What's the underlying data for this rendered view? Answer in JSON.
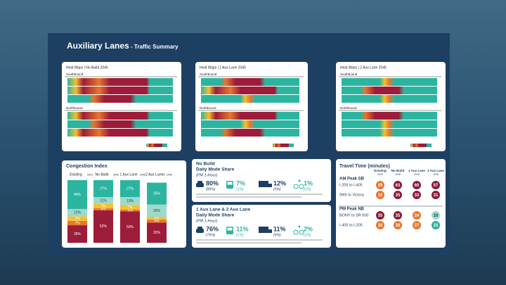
{
  "title": "Auxiliary Lanes",
  "subtitle": "- Traffic Summary",
  "heatmaps": [
    {
      "title": "Heat Maps | No Build 2045",
      "upper": "Southbound",
      "lower": "Northbound"
    },
    {
      "title": "Heat Maps | 1 Aux Lane 2045",
      "upper": "Southbound",
      "lower": "Northbound"
    },
    {
      "title": "Heat Maps | 2 Aux Lane 2045",
      "upper": "Southbound",
      "lower": "Northbound"
    }
  ],
  "congestion_index": {
    "type": "bar",
    "title": "Congestion Index",
    "categories": [
      {
        "label": "Existing",
        "year": "2019"
      },
      {
        "label": "No Build",
        "year": "2045"
      },
      {
        "label": "1 Aux Lane",
        "year": "2045"
      },
      {
        "label": "2 Aux Lanes",
        "year": "2045"
      }
    ],
    "ylim": [
      0,
      100
    ],
    "stacked": true,
    "series": [
      {
        "color": "#9c1c3a",
        "values": [
          28,
          52,
          50,
          32
        ],
        "value_labels": [
          "28%",
          "52%",
          "50%",
          "32%"
        ]
      },
      {
        "color": "#e8762c",
        "values": [
          7,
          3,
          3,
          5
        ],
        "value_labels": [
          "7%",
          "3%",
          "3%",
          "5%"
        ]
      },
      {
        "color": "#f2c12e",
        "values": [
          7,
          7,
          7,
          4
        ],
        "value_labels": [
          "7%",
          "7%",
          "7%",
          "4%"
        ]
      },
      {
        "color": "#9ed9c9",
        "values": [
          12,
          11,
          13,
          20
        ],
        "value_labels": [
          "12%",
          "11%",
          "13%",
          "20%"
        ]
      },
      {
        "color": "#2bb5a0",
        "values": [
          46,
          27,
          27,
          35
        ],
        "value_labels": [
          "46%",
          "27%",
          "27%",
          "35%"
        ]
      }
    ]
  },
  "mode_share": [
    {
      "title": "No Build",
      "subtitle": "Daily Mode Share",
      "period": "(PM 1-Hour)",
      "items": [
        {
          "mode": "car",
          "value": "80%",
          "peak": "(80%)",
          "color": "#1d3f62"
        },
        {
          "mode": "bus",
          "value": "7%",
          "peak": "(1%)",
          "color": "#2bb5a0"
        },
        {
          "mode": "truck",
          "value": "12%",
          "peak": "(9%)",
          "color": "#1d3f62"
        },
        {
          "mode": "bike",
          "value": "1%",
          "peak": "(2%)",
          "color": "#2bb5a0"
        }
      ]
    },
    {
      "title": "1 Aux Lane & 2 Aux Lane",
      "subtitle": "Daily Mode Share",
      "period": "(PM 1-Hour)",
      "items": [
        {
          "mode": "car",
          "value": "76%",
          "peak": "(76%)",
          "color": "#1d3f62"
        },
        {
          "mode": "bus",
          "value": "11%",
          "peak": "(1%)",
          "color": "#2bb5a0"
        },
        {
          "mode": "truck",
          "value": "11%",
          "peak": "(9%)",
          "color": "#1d3f62"
        },
        {
          "mode": "bike",
          "value": "2%",
          "peak": "(2%)",
          "color": "#2bb5a0"
        }
      ]
    }
  ],
  "travel_time": {
    "title": "Travel Time (minutes)",
    "columns": [
      {
        "label": "Existing",
        "year": "2019"
      },
      {
        "label": "No Build",
        "year": "2045"
      },
      {
        "label": "1 Aux Lane",
        "year": "2045"
      },
      {
        "label": "2 Aux Lane",
        "year": "2045"
      }
    ],
    "sections": [
      {
        "title": "AM Peak SB",
        "rows": [
          {
            "name": "I-205 to I-405",
            "values": [
              "29",
              "63",
              "60",
              "57"
            ],
            "colors": [
              "#e8762c",
              "#8a1a38",
              "#8a1a38",
              "#8a1a38"
            ]
          },
          {
            "name": "99th to Victory",
            "values": [
              "16",
              "35",
              "33",
              "31"
            ],
            "colors": [
              "#e8762c",
              "#8a1a38",
              "#8a1a38",
              "#8a1a38"
            ]
          }
        ]
      },
      {
        "title": "PM Peak NB",
        "rows": [
          {
            "name": "BONY to SR 500",
            "values": [
              "35",
              "35",
              "24",
              "10"
            ],
            "colors": [
              "#8a1a38",
              "#8a1a38",
              "#e8762c",
              "#9ed9c9"
            ]
          },
          {
            "name": "I-405 to I-205",
            "values": [
              "38",
              "38",
              "27",
              "15"
            ],
            "colors": [
              "#e8762c",
              "#e8762c",
              "#e8762c",
              "#2bb5a0"
            ]
          }
        ]
      }
    ]
  }
}
